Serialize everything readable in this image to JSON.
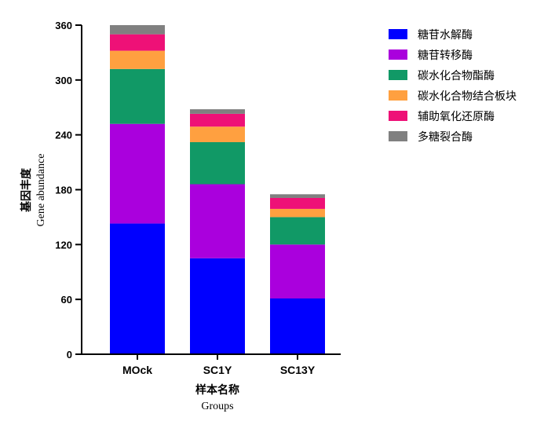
{
  "chart_data": {
    "type": "bar",
    "stacked": true,
    "categories": [
      "MOck",
      "SC1Y",
      "SC13Y"
    ],
    "series": [
      {
        "name": "糖苷水解酶",
        "color": "#0000ff",
        "values": [
          143,
          105,
          61
        ]
      },
      {
        "name": "糖苷转移酶",
        "color": "#aa00dd",
        "values": [
          109,
          81,
          59
        ]
      },
      {
        "name": "碳水化合物酯酶",
        "color": "#119966",
        "values": [
          60,
          46,
          30
        ]
      },
      {
        "name": "碳水化合物结合板块",
        "color": "#ffa040",
        "values": [
          20,
          17,
          9
        ]
      },
      {
        "name": "辅助氧化还原酶",
        "color": "#ee1177",
        "values": [
          18,
          14,
          12
        ]
      },
      {
        "name": "多糖裂合酶",
        "color": "#808080",
        "values": [
          10,
          5,
          4
        ]
      }
    ],
    "ylim": [
      0,
      360
    ],
    "yticks": [
      0,
      60,
      120,
      180,
      240,
      300,
      360
    ],
    "ylabel_cn": "基因丰度",
    "ylabel_en": "Gene abundance",
    "xlabel_cn": "样本名称",
    "xlabel_en": "Groups",
    "legend_position": "right"
  }
}
